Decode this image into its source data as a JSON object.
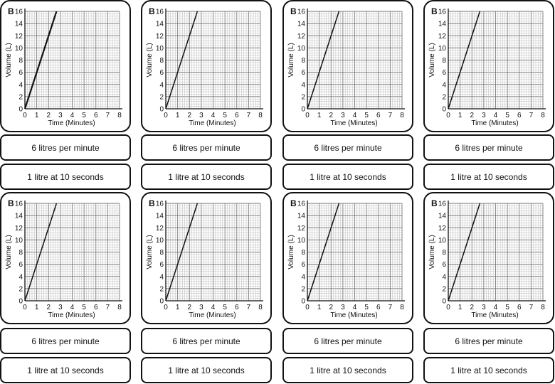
{
  "colors": {
    "border": "#111111",
    "line": "#111111",
    "grid_minor": "#b9b9b9",
    "grid_major": "#7a7a7a"
  },
  "statements": {
    "rate": "6 litres per minute",
    "point": "1 litre at 10 seconds"
  },
  "chart_data": [
    {
      "type": "line",
      "badge": "B",
      "title": "",
      "xlabel": "Time (Minutes)",
      "ylabel": "Volume (L)",
      "xlim": [
        0,
        8
      ],
      "ylim": [
        0,
        16
      ],
      "x_ticks": [
        0,
        1,
        2,
        3,
        4,
        5,
        6,
        7,
        8
      ],
      "y_ticks": [
        0,
        2,
        4,
        6,
        8,
        10,
        12,
        14,
        16
      ],
      "grid": true,
      "series": [
        {
          "name": "volume",
          "x": [
            0,
            2.67
          ],
          "y": [
            0,
            16
          ]
        }
      ]
    },
    {
      "type": "line",
      "badge": "B",
      "title": "",
      "xlabel": "Time (Minutes)",
      "ylabel": "Volume (L)",
      "xlim": [
        0,
        8
      ],
      "ylim": [
        0,
        16
      ],
      "x_ticks": [
        0,
        1,
        2,
        3,
        4,
        5,
        6,
        7,
        8
      ],
      "y_ticks": [
        0,
        2,
        4,
        6,
        8,
        10,
        12,
        14,
        16
      ],
      "grid": true,
      "series": [
        {
          "name": "volume",
          "x": [
            0,
            2.67
          ],
          "y": [
            0,
            16
          ]
        }
      ]
    },
    {
      "type": "line",
      "badge": "B",
      "title": "",
      "xlabel": "Time (Minutes)",
      "ylabel": "Volume (L)",
      "xlim": [
        0,
        8
      ],
      "ylim": [
        0,
        16
      ],
      "x_ticks": [
        0,
        1,
        2,
        3,
        4,
        5,
        6,
        7,
        8
      ],
      "y_ticks": [
        0,
        2,
        4,
        6,
        8,
        10,
        12,
        14,
        16
      ],
      "grid": true,
      "series": [
        {
          "name": "volume",
          "x": [
            0,
            2.67
          ],
          "y": [
            0,
            16
          ]
        }
      ]
    },
    {
      "type": "line",
      "badge": "B",
      "title": "",
      "xlabel": "Time (Minutes)",
      "ylabel": "Volume (L)",
      "xlim": [
        0,
        8
      ],
      "ylim": [
        0,
        16
      ],
      "x_ticks": [
        0,
        1,
        2,
        3,
        4,
        5,
        6,
        7,
        8
      ],
      "y_ticks": [
        0,
        2,
        4,
        6,
        8,
        10,
        12,
        14,
        16
      ],
      "grid": true,
      "series": [
        {
          "name": "volume",
          "x": [
            0,
            2.67
          ],
          "y": [
            0,
            16
          ]
        }
      ]
    },
    {
      "type": "line",
      "badge": "B",
      "title": "",
      "xlabel": "Time (Minutes)",
      "ylabel": "Volume (L)",
      "xlim": [
        0,
        8
      ],
      "ylim": [
        0,
        16
      ],
      "x_ticks": [
        0,
        1,
        2,
        3,
        4,
        5,
        6,
        7,
        8
      ],
      "y_ticks": [
        0,
        2,
        4,
        6,
        8,
        10,
        12,
        14,
        16
      ],
      "grid": true,
      "series": [
        {
          "name": "volume",
          "x": [
            0,
            2.67
          ],
          "y": [
            0,
            16
          ]
        }
      ]
    },
    {
      "type": "line",
      "badge": "B",
      "title": "",
      "xlabel": "Time (Minutes)",
      "ylabel": "Volume (L)",
      "xlim": [
        0,
        8
      ],
      "ylim": [
        0,
        16
      ],
      "x_ticks": [
        0,
        1,
        2,
        3,
        4,
        5,
        6,
        7,
        8
      ],
      "y_ticks": [
        0,
        2,
        4,
        6,
        8,
        10,
        12,
        14,
        16
      ],
      "grid": true,
      "series": [
        {
          "name": "volume",
          "x": [
            0,
            2.67
          ],
          "y": [
            0,
            16
          ]
        }
      ]
    },
    {
      "type": "line",
      "badge": "B",
      "title": "",
      "xlabel": "Time (Minutes)",
      "ylabel": "Volume (L)",
      "xlim": [
        0,
        8
      ],
      "ylim": [
        0,
        16
      ],
      "x_ticks": [
        0,
        1,
        2,
        3,
        4,
        5,
        6,
        7,
        8
      ],
      "y_ticks": [
        0,
        2,
        4,
        6,
        8,
        10,
        12,
        14,
        16
      ],
      "grid": true,
      "series": [
        {
          "name": "volume",
          "x": [
            0,
            2.67
          ],
          "y": [
            0,
            16
          ]
        }
      ]
    },
    {
      "type": "line",
      "badge": "B",
      "title": "",
      "xlabel": "Time (Minutes)",
      "ylabel": "Volume (L)",
      "xlim": [
        0,
        8
      ],
      "ylim": [
        0,
        16
      ],
      "x_ticks": [
        0,
        1,
        2,
        3,
        4,
        5,
        6,
        7,
        8
      ],
      "y_ticks": [
        0,
        2,
        4,
        6,
        8,
        10,
        12,
        14,
        16
      ],
      "grid": true,
      "series": [
        {
          "name": "volume",
          "x": [
            0,
            2.67
          ],
          "y": [
            0,
            16
          ]
        }
      ]
    }
  ]
}
